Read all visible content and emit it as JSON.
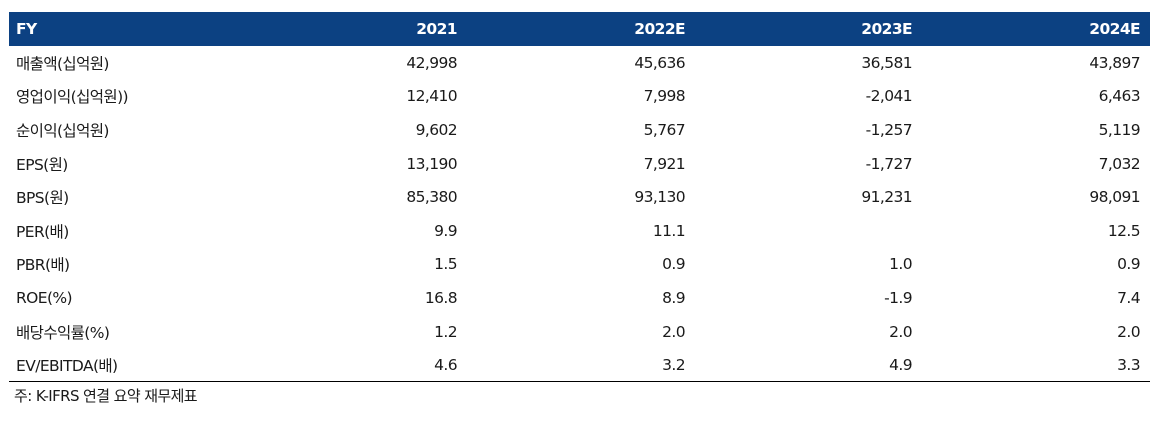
{
  "header": {
    "label": "FY",
    "years": [
      "2021",
      "2022E",
      "2023E",
      "2024E"
    ]
  },
  "colors": {
    "header_bg": "#0c4182",
    "header_text": "#ffffff"
  },
  "rows": [
    {
      "label": "매출액(십억원)",
      "values": [
        "42,998",
        "45,636",
        "36,581",
        "43,897"
      ]
    },
    {
      "label": "영업이익(십억원))",
      "values": [
        "12,410",
        "7,998",
        "-2,041",
        "6,463"
      ]
    },
    {
      "label": "순이익(십억원)",
      "values": [
        "9,602",
        "5,767",
        "-1,257",
        "5,119"
      ]
    },
    {
      "label": "EPS(원)",
      "values": [
        "13,190",
        "7,921",
        "-1,727",
        "7,032"
      ]
    },
    {
      "label": "BPS(원)",
      "values": [
        "85,380",
        "93,130",
        "91,231",
        "98,091"
      ]
    },
    {
      "label": "PER(배)",
      "values": [
        "9.9",
        "11.1",
        "",
        "12.5"
      ]
    },
    {
      "label": "PBR(배)",
      "values": [
        "1.5",
        "0.9",
        "1.0",
        "0.9"
      ]
    },
    {
      "label": "ROE(%)",
      "values": [
        "16.8",
        "8.9",
        "-1.9",
        "7.4"
      ]
    },
    {
      "label": "배당수익률(%)",
      "values": [
        "1.2",
        "2.0",
        "2.0",
        "2.0"
      ]
    },
    {
      "label": "EV/EBITDA(배)",
      "values": [
        "4.6",
        "3.2",
        "4.9",
        "3.3"
      ]
    }
  ],
  "footnote": "주: K-IFRS 연결 요약 재무제표"
}
